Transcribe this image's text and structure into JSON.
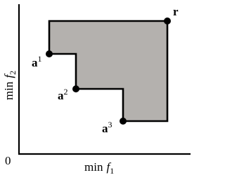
{
  "axes": {
    "origin": "0",
    "x_label": {
      "prefix": "min",
      "var": "f",
      "sub": "1"
    },
    "y_label": {
      "prefix": "min",
      "var": "f",
      "sub": "2"
    }
  },
  "nodes": [
    {
      "label": "a",
      "sup": "1"
    },
    {
      "label": "a",
      "sup": "2"
    },
    {
      "label": "a",
      "sup": "3"
    },
    {
      "label": "r"
    }
  ]
}
